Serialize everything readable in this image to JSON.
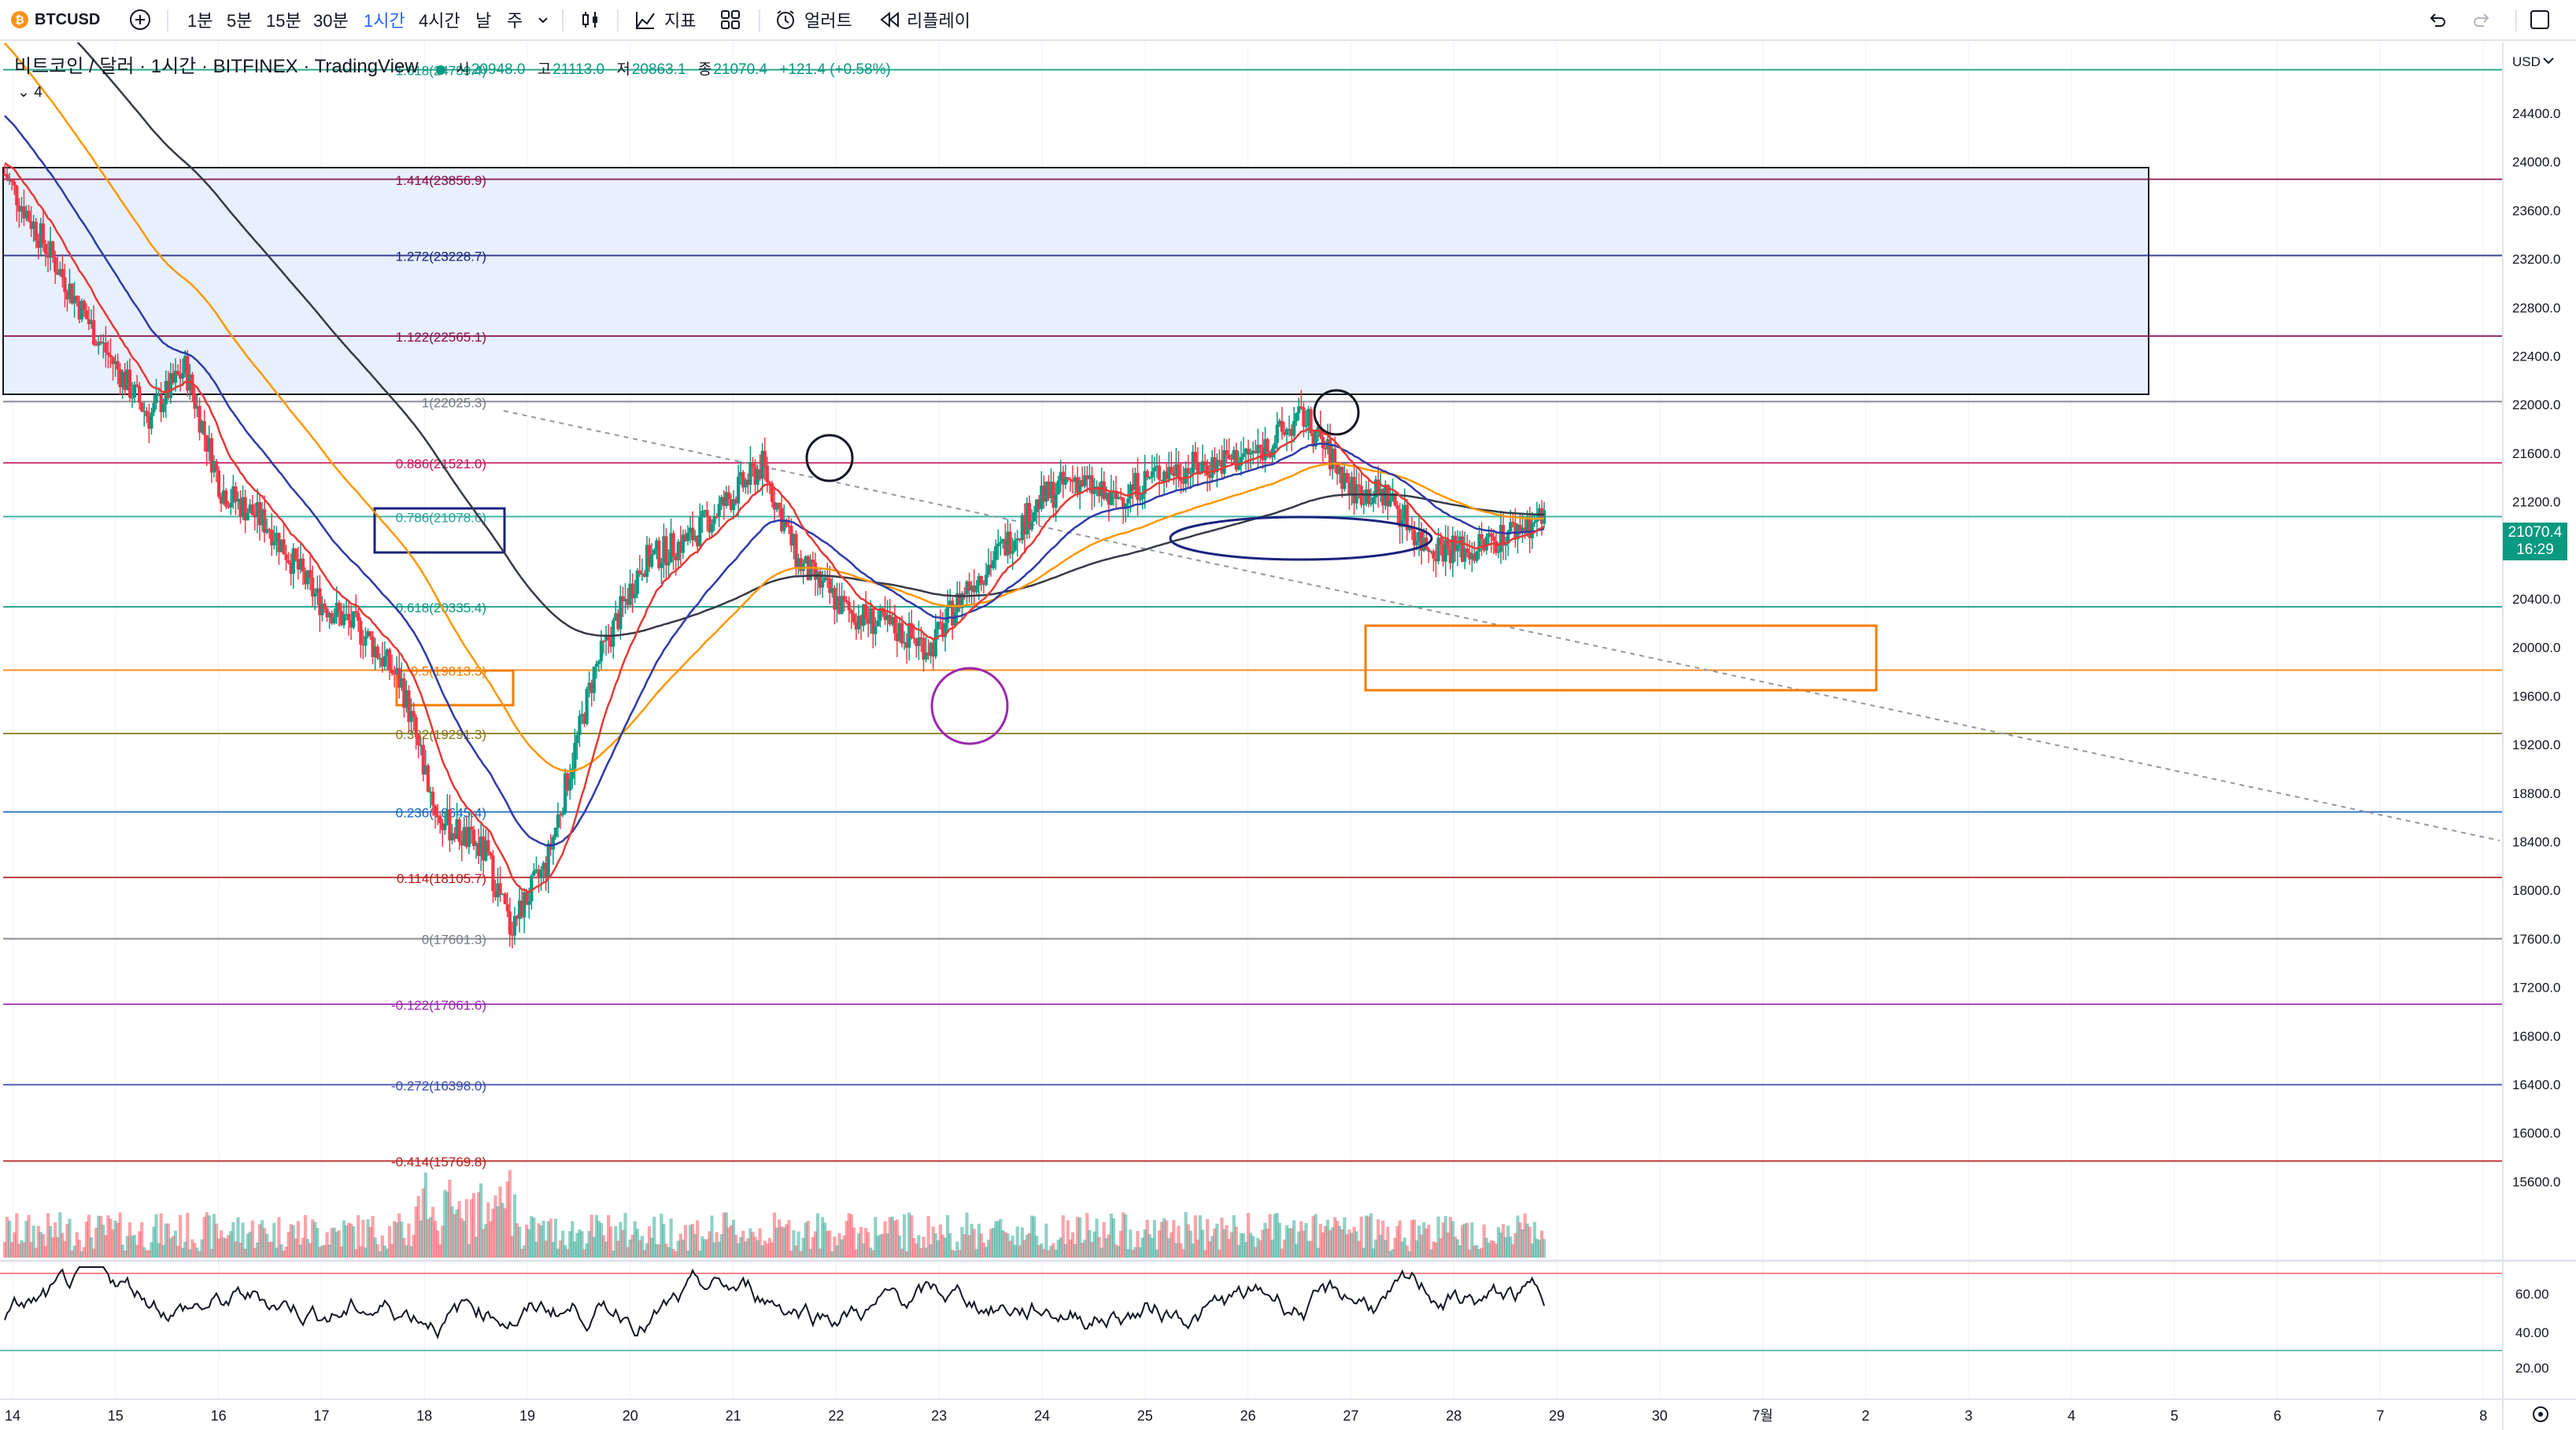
{
  "toolbar": {
    "symbol": "BTCUSD",
    "intervals": [
      "1분",
      "5분",
      "15분",
      "30분",
      "1시간",
      "4시간",
      "날",
      "주"
    ],
    "active_interval": "1시간",
    "indicators_label": "지표",
    "alerts_label": "얼러트",
    "replay_label": "리플레이"
  },
  "legend": {
    "title": "비트코인 / 달러 · 1시간 · BITFINEX · TradingView",
    "open_label": "시",
    "open": "20948.0",
    "high_label": "고",
    "high": "21113.0",
    "low_label": "저",
    "low": "20863.1",
    "close_label": "종",
    "close": "21070.4",
    "change": "+121.4 (+0.58%)",
    "indicator_count": "4"
  },
  "price_axis": {
    "currency": "USD",
    "labels": [
      "24400.0",
      "24000.0",
      "23600.0",
      "23200.0",
      "22800.0",
      "22400.0",
      "22000.0",
      "21600.0",
      "21200.0",
      "20800.0",
      "20400.0",
      "20000.0",
      "19600.0",
      "19200.0",
      "18800.0",
      "18400.0",
      "18000.0",
      "17600.0",
      "17200.0",
      "16800.0",
      "16400.0",
      "16000.0",
      "15600.0"
    ],
    "last_price": "21070.4",
    "countdown": "16:29"
  },
  "rsi_axis": {
    "labels": [
      "60.00",
      "40.00",
      "20.00"
    ]
  },
  "time_axis": {
    "labels": [
      "14",
      "15",
      "16",
      "17",
      "18",
      "19",
      "20",
      "21",
      "22",
      "23",
      "24",
      "25",
      "26",
      "27",
      "28",
      "29",
      "30",
      "7월",
      "2",
      "3",
      "4",
      "5",
      "6",
      "7",
      "8"
    ]
  },
  "fib_levels": [
    {
      "label": "1.618(24759.4)",
      "color": "#089981"
    },
    {
      "label": "1.414(23856.9)",
      "color": "#880e4f"
    },
    {
      "label": "1.272(23228.7)",
      "color": "#1a237e"
    },
    {
      "label": "1.122(22565.1)",
      "color": "#880e4f"
    },
    {
      "label": "1(22025.3)",
      "color": "#787b86"
    },
    {
      "label": "0.886(21521.0)",
      "color": "#c2185b"
    },
    {
      "label": "0.786(21078.6)",
      "color": "#26a69a"
    },
    {
      "label": "0.618(20335.4)",
      "color": "#089981"
    },
    {
      "label": "0.5(19813.3)",
      "color": "#f57c00"
    },
    {
      "label": "0.382(19291.3)",
      "color": "#827717"
    },
    {
      "label": "0.236(18645.4)",
      "color": "#1565c0"
    },
    {
      "label": "0.114(18105.7)",
      "color": "#b71c1c"
    },
    {
      "label": "0(17601.3)",
      "color": "#787b86"
    },
    {
      "label": "-0.122(17061.6)",
      "color": "#9c27b0"
    },
    {
      "label": "-0.272(16398.0)",
      "color": "#3949ab"
    },
    {
      "label": "-0.414(15769.8)",
      "color": "#b71c1c"
    }
  ],
  "colors": {
    "up": "#089981",
    "down": "#f23645",
    "ema_black": "#363a45",
    "ema_orange": "#ff9800",
    "ema_blue": "#2f3aa8",
    "ema_red": "#e53935",
    "zone_fill": "#e8f0fe"
  }
}
